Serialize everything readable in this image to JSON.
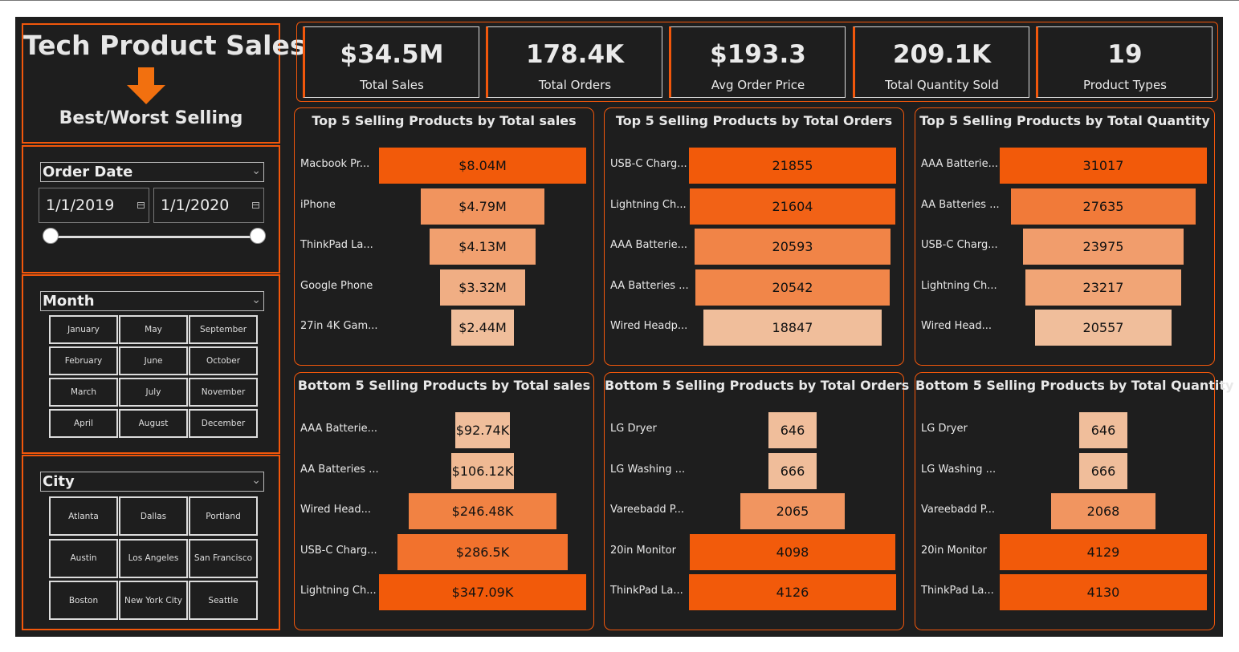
{
  "sidebar": {
    "title": "Tech Product Sales",
    "subtitle": "Best/Worst Selling",
    "date_filter": {
      "label": "Order Date",
      "start": "1/1/2019",
      "end": "1/1/2020"
    },
    "month_filter": {
      "label": "Month",
      "options": [
        "January",
        "May",
        "September",
        "February",
        "June",
        "October",
        "March",
        "July",
        "November",
        "April",
        "August",
        "December"
      ]
    },
    "city_filter": {
      "label": "City",
      "options": [
        "Atlanta",
        "Dallas",
        "Portland",
        "Austin",
        "Los Angeles",
        "San Francisco",
        "Boston",
        "New York City",
        "Seattle"
      ]
    }
  },
  "kpis": [
    {
      "value": "$34.5M",
      "label": "Total Sales"
    },
    {
      "value": "178.4K",
      "label": "Total Orders"
    },
    {
      "value": "$193.3",
      "label": "Avg Order Price"
    },
    {
      "value": "209.1K",
      "label": "Total Quantity Sold"
    },
    {
      "value": "19",
      "label": "Product Types"
    }
  ],
  "colors": {
    "accent": "#f2570b",
    "background": "#1e1e1e",
    "bar_dark": "#f25a0a",
    "bar_light": "#f0be9b"
  },
  "chart_data": [
    {
      "type": "bar",
      "title": "Top 5 Selling Products by Total sales",
      "categories": [
        "Macbook Pr...",
        "iPhone",
        "ThinkPad La...",
        "Google Phone",
        "27in 4K Gam..."
      ],
      "values": [
        8.04,
        4.79,
        4.13,
        3.32,
        2.44
      ],
      "data_labels": [
        "$8.04M",
        "$4.79M",
        "$4.13M",
        "$3.32M",
        "$2.44M"
      ]
    },
    {
      "type": "bar",
      "title": "Top 5 Selling Products by Total Orders",
      "categories": [
        "USB-C Charg...",
        "Lightning Ch...",
        "AAA Batterie...",
        "AA Batteries ...",
        "Wired Headp..."
      ],
      "values": [
        21855,
        21604,
        20593,
        20542,
        18847
      ],
      "data_labels": [
        "21855",
        "21604",
        "20593",
        "20542",
        "18847"
      ]
    },
    {
      "type": "bar",
      "title": "Top 5 Selling Products by Total Quantity",
      "categories": [
        "AAA Batterie...",
        "AA Batteries ...",
        "USB-C Charg...",
        "Lightning Ch...",
        "Wired Head..."
      ],
      "values": [
        31017,
        27635,
        23975,
        23217,
        20557
      ],
      "data_labels": [
        "31017",
        "27635",
        "23975",
        "23217",
        "20557"
      ]
    },
    {
      "type": "bar",
      "title": "Bottom 5 Selling Products by Total sales",
      "categories": [
        "AAA Batterie...",
        "AA Batteries ...",
        "Wired Head...",
        "USB-C Charg...",
        "Lightning Ch..."
      ],
      "values": [
        92.74,
        106.12,
        246.48,
        286.5,
        347.09
      ],
      "data_labels": [
        "$92.74K",
        "$106.12K",
        "$246.48K",
        "$286.5K",
        "$347.09K"
      ]
    },
    {
      "type": "bar",
      "title": "Bottom 5 Selling Products by Total Orders",
      "categories": [
        "LG Dryer",
        "LG Washing ...",
        "Vareebadd P...",
        "20in Monitor",
        "ThinkPad La..."
      ],
      "values": [
        646,
        666,
        2065,
        4098,
        4126
      ],
      "data_labels": [
        "646",
        "666",
        "2065",
        "4098",
        "4126"
      ]
    },
    {
      "type": "bar",
      "title": "Bottom 5 Selling Products by Total Quantity",
      "categories": [
        "LG Dryer",
        "LG Washing ...",
        "Vareebadd P...",
        "20in Monitor",
        "ThinkPad La..."
      ],
      "values": [
        646,
        666,
        2068,
        4129,
        4130
      ],
      "data_labels": [
        "646",
        "666",
        "2068",
        "4129",
        "4130"
      ]
    }
  ]
}
